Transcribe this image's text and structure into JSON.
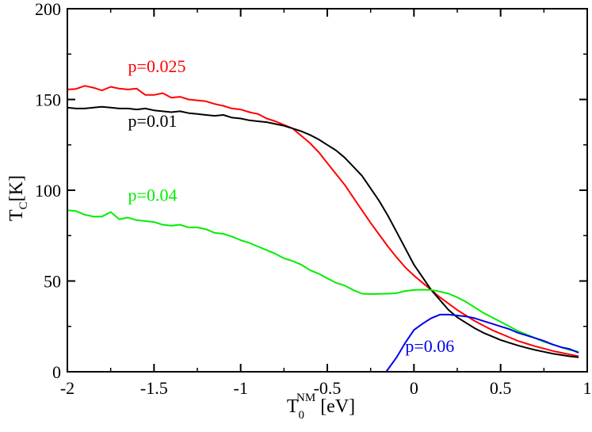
{
  "chart_data": {
    "type": "line",
    "title": "",
    "xlabel": {
      "main": "T",
      "sub": "0",
      "sup": "NM",
      "unit": " [eV]"
    },
    "ylabel": {
      "main": "T",
      "sub": "C",
      "unit": "[K]"
    },
    "xlim": [
      -2,
      1
    ],
    "ylim": [
      0,
      200
    ],
    "xticks": [
      -2,
      -1.5,
      -1,
      -0.5,
      0,
      0.5,
      1
    ],
    "xtick_labels": [
      "-2",
      "-1.5",
      "-1",
      "-0.5",
      "0",
      "0.5",
      "1"
    ],
    "yticks": [
      0,
      50,
      100,
      150,
      200
    ],
    "ytick_labels": [
      "0",
      "50",
      "100",
      "150",
      "200"
    ],
    "grid": false,
    "series": [
      {
        "name": "p=0.025",
        "color": "#ff0000",
        "label_at": [
          -1.65,
          165
        ],
        "x": [
          -2.0,
          -1.95,
          -1.9,
          -1.85,
          -1.8,
          -1.75,
          -1.7,
          -1.65,
          -1.6,
          -1.55,
          -1.5,
          -1.45,
          -1.4,
          -1.35,
          -1.3,
          -1.25,
          -1.2,
          -1.15,
          -1.1,
          -1.05,
          -1.0,
          -0.95,
          -0.9,
          -0.85,
          -0.8,
          -0.75,
          -0.7,
          -0.65,
          -0.6,
          -0.55,
          -0.5,
          -0.45,
          -0.4,
          -0.35,
          -0.3,
          -0.25,
          -0.2,
          -0.15,
          -0.1,
          -0.05,
          0.0,
          0.05,
          0.1,
          0.15,
          0.2,
          0.25,
          0.3,
          0.35,
          0.4,
          0.45,
          0.5,
          0.55,
          0.6,
          0.65,
          0.7,
          0.75,
          0.8,
          0.85,
          0.9,
          0.95
        ],
        "y": [
          155.5,
          155.8,
          157.5,
          156.5,
          155,
          157,
          156,
          155.5,
          156,
          152.5,
          152.5,
          153.5,
          151,
          151.5,
          150,
          149.5,
          149,
          147.5,
          146.5,
          145,
          144.5,
          143,
          142,
          139.5,
          138,
          136,
          134,
          130,
          126,
          121,
          115,
          109,
          103,
          96,
          89,
          82,
          75.5,
          69,
          63,
          57.5,
          53,
          49,
          45,
          41,
          37.5,
          34,
          31,
          28,
          25.5,
          23,
          21,
          19,
          17,
          15.5,
          14,
          12.8,
          11.5,
          10.5,
          9.5,
          8.5
        ]
      },
      {
        "name": "p=0.01",
        "color": "#000000",
        "label_at": [
          -1.65,
          135
        ],
        "x": [
          -2.0,
          -1.95,
          -1.9,
          -1.85,
          -1.8,
          -1.75,
          -1.7,
          -1.65,
          -1.6,
          -1.55,
          -1.5,
          -1.45,
          -1.4,
          -1.35,
          -1.3,
          -1.25,
          -1.2,
          -1.15,
          -1.1,
          -1.05,
          -1.0,
          -0.95,
          -0.9,
          -0.85,
          -0.8,
          -0.75,
          -0.7,
          -0.65,
          -0.6,
          -0.55,
          -0.5,
          -0.45,
          -0.4,
          -0.35,
          -0.3,
          -0.25,
          -0.2,
          -0.15,
          -0.1,
          -0.05,
          0.0,
          0.05,
          0.1,
          0.15,
          0.2,
          0.25,
          0.3,
          0.35,
          0.4,
          0.45,
          0.5,
          0.55,
          0.6,
          0.65,
          0.7,
          0.75,
          0.8,
          0.85,
          0.9,
          0.95
        ],
        "y": [
          145.5,
          145,
          145,
          145.5,
          146,
          145.5,
          145,
          145,
          144.5,
          145,
          144,
          143.5,
          143,
          143.5,
          142.5,
          142,
          141.5,
          141,
          141.5,
          140,
          139.5,
          138.5,
          138,
          137.5,
          136.5,
          135.5,
          134,
          132.5,
          130.5,
          128,
          125,
          122,
          118,
          113,
          108,
          101,
          94,
          86,
          77,
          68,
          59,
          52,
          45,
          39.5,
          34,
          30,
          27,
          24,
          21.5,
          19.5,
          17.5,
          16,
          14.5,
          13.2,
          12,
          11,
          10,
          9.2,
          8.5,
          8
        ]
      },
      {
        "name": "p=0.04",
        "color": "#00ee00",
        "label_at": [
          -1.65,
          94
        ],
        "x": [
          -2.0,
          -1.95,
          -1.9,
          -1.85,
          -1.8,
          -1.75,
          -1.7,
          -1.65,
          -1.6,
          -1.55,
          -1.5,
          -1.45,
          -1.4,
          -1.35,
          -1.3,
          -1.25,
          -1.2,
          -1.15,
          -1.1,
          -1.05,
          -1.0,
          -0.95,
          -0.9,
          -0.85,
          -0.8,
          -0.75,
          -0.7,
          -0.65,
          -0.6,
          -0.55,
          -0.5,
          -0.45,
          -0.4,
          -0.35,
          -0.3,
          -0.25,
          -0.2,
          -0.15,
          -0.1,
          -0.05,
          0.0,
          0.05,
          0.1,
          0.15,
          0.2,
          0.25,
          0.3,
          0.35,
          0.4,
          0.45,
          0.5,
          0.55,
          0.6,
          0.65,
          0.7,
          0.75,
          0.8,
          0.85,
          0.9,
          0.95
        ],
        "y": [
          89,
          88.5,
          86.5,
          85.5,
          85.5,
          88,
          84,
          85,
          83.5,
          83,
          82.5,
          81,
          80.5,
          81,
          79.5,
          79.5,
          78.5,
          76.5,
          76,
          74.5,
          72.5,
          71,
          69,
          67,
          65,
          62.5,
          61,
          59,
          56,
          54,
          51.5,
          49,
          47.5,
          45,
          43,
          42.8,
          42.9,
          43,
          43.3,
          44.5,
          45,
          45.2,
          45,
          44.2,
          43,
          41,
          38.5,
          35.5,
          32.5,
          30,
          27.5,
          25,
          22.5,
          20.5,
          18.5,
          16.5,
          15,
          13.5,
          12,
          11
        ]
      },
      {
        "name": "p=0.06",
        "color": "#0000ee",
        "label_at": [
          -0.05,
          11
        ],
        "x": [
          -0.16,
          -0.1,
          -0.05,
          0.0,
          0.05,
          0.1,
          0.15,
          0.2,
          0.25,
          0.3,
          0.35,
          0.4,
          0.45,
          0.5,
          0.55,
          0.6,
          0.65,
          0.7,
          0.75,
          0.8,
          0.85,
          0.9,
          0.95
        ],
        "y": [
          0,
          8,
          16,
          23,
          26.5,
          29.5,
          31.5,
          31.5,
          31,
          30.5,
          29.5,
          28,
          26.5,
          25,
          23.5,
          21.5,
          20,
          18.5,
          17,
          15,
          13.5,
          12.5,
          10.5
        ]
      }
    ]
  }
}
